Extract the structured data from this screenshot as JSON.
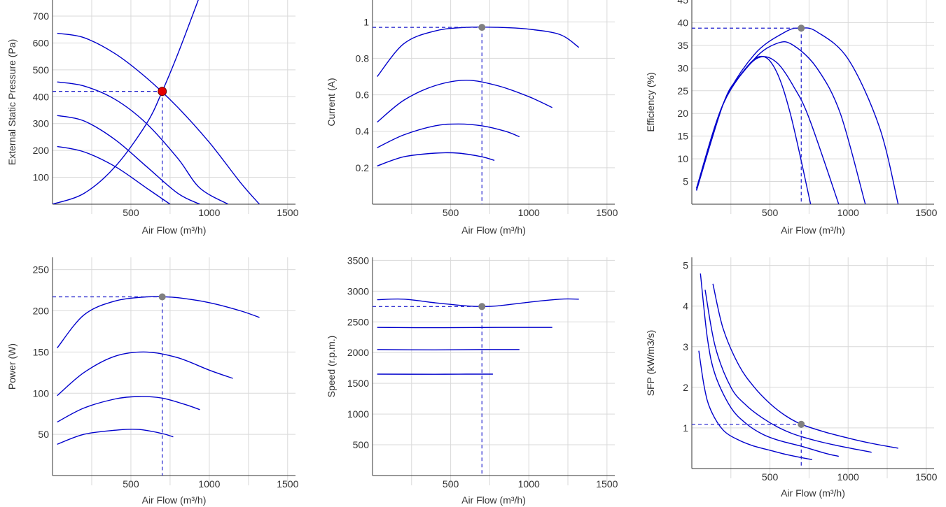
{
  "colors": {
    "curve": "#0000cc",
    "guide": "#1a1acc",
    "marker": "#808080",
    "operating_marker": "#e60000",
    "grid": "#d9d9d9",
    "axis": "#333333"
  },
  "chart_data": [
    {
      "id": "pressure",
      "type": "line",
      "xlabel": "Air Flow (m³/h)",
      "ylabel": "External Static Pressure (Pa)",
      "xlim": [
        0,
        1550
      ],
      "ylim": [
        0,
        760
      ],
      "xticks": [
        500,
        1000,
        1500
      ],
      "yticks": [
        100,
        200,
        300,
        400,
        500,
        600,
        700
      ],
      "xgrid": [
        250,
        500,
        750,
        1000,
        1250,
        1500
      ],
      "ygrid": [
        100,
        200,
        300,
        400,
        500,
        600,
        700
      ],
      "series": [
        {
          "x": [
            30,
            200,
            400,
            600,
            800,
            1000,
            1200,
            1320
          ],
          "y": [
            636,
            620,
            560,
            470,
            360,
            230,
            80,
            0
          ]
        },
        {
          "x": [
            30,
            200,
            400,
            600,
            800,
            940,
            1120
          ],
          "y": [
            455,
            440,
            390,
            300,
            170,
            60,
            0
          ]
        },
        {
          "x": [
            30,
            200,
            400,
            600,
            800,
            940
          ],
          "y": [
            330,
            310,
            240,
            140,
            40,
            0
          ]
        },
        {
          "x": [
            30,
            200,
            400,
            600,
            750
          ],
          "y": [
            215,
            195,
            140,
            60,
            0
          ]
        },
        {
          "x": [
            0,
            200,
            400,
            600,
            700,
            800,
            930
          ],
          "y": [
            0,
            40,
            140,
            300,
            420,
            560,
            760
          ]
        }
      ],
      "marker": {
        "x": 700,
        "y": 420,
        "color": "#e60000"
      }
    },
    {
      "id": "current",
      "type": "line",
      "xlabel": "Air Flow (m³/h)",
      "ylabel": "Current (A)",
      "xlim": [
        0,
        1550
      ],
      "ylim": [
        0,
        1.12
      ],
      "xticks": [
        500,
        1000,
        1500
      ],
      "yticks": [
        0.2,
        0.4,
        0.6,
        0.8,
        1
      ],
      "ytick_labels": [
        "0.2",
        "0.4",
        "0.6",
        "0.8",
        "1"
      ],
      "xgrid": [
        250,
        500,
        750,
        1000,
        1250,
        1500
      ],
      "ygrid": [
        0.2,
        0.4,
        0.6,
        0.8,
        1
      ],
      "series": [
        {
          "x": [
            30,
            200,
            400,
            600,
            800,
            1000,
            1200,
            1320
          ],
          "y": [
            0.7,
            0.88,
            0.95,
            0.97,
            0.97,
            0.96,
            0.93,
            0.86
          ]
        },
        {
          "x": [
            30,
            200,
            400,
            600,
            800,
            1000,
            1150
          ],
          "y": [
            0.45,
            0.57,
            0.65,
            0.68,
            0.65,
            0.59,
            0.53
          ]
        },
        {
          "x": [
            30,
            200,
            400,
            550,
            700,
            850,
            940
          ],
          "y": [
            0.31,
            0.38,
            0.43,
            0.44,
            0.43,
            0.4,
            0.37
          ]
        },
        {
          "x": [
            30,
            200,
            400,
            550,
            700,
            780
          ],
          "y": [
            0.21,
            0.26,
            0.28,
            0.28,
            0.26,
            0.24
          ]
        }
      ],
      "marker": {
        "x": 700,
        "y": 0.97,
        "color": "#808080"
      }
    },
    {
      "id": "efficiency",
      "type": "line",
      "xlabel": "Air Flow (m³/h)",
      "ylabel": "Efficiency (%)",
      "xlim": [
        0,
        1550
      ],
      "ylim": [
        0,
        45
      ],
      "xticks": [
        500,
        1000,
        1500
      ],
      "yticks": [
        5,
        10,
        15,
        20,
        25,
        30,
        35,
        40,
        45
      ],
      "xgrid": [
        250,
        500,
        750,
        1000,
        1250,
        1500
      ],
      "ygrid": [
        5,
        10,
        15,
        20,
        25,
        30,
        35,
        40
      ],
      "series": [
        {
          "x": [
            30,
            200,
            400,
            600,
            700,
            800,
            1000,
            1200,
            1320
          ],
          "y": [
            3.5,
            22,
            33,
            38,
            38.8,
            38,
            32,
            17,
            0
          ]
        },
        {
          "x": [
            30,
            200,
            400,
            550,
            650,
            800,
            950,
            1110
          ],
          "y": [
            3.5,
            22,
            32,
            35.5,
            35,
            30,
            20,
            0
          ]
        },
        {
          "x": [
            30,
            200,
            350,
            450,
            550,
            650,
            750,
            940
          ],
          "y": [
            3.2,
            22,
            30,
            32.5,
            31,
            26,
            19,
            0
          ]
        },
        {
          "x": [
            30,
            200,
            300,
            430,
            530,
            630,
            760
          ],
          "y": [
            3,
            22,
            28,
            32.5,
            30,
            20,
            0
          ]
        }
      ],
      "marker": {
        "x": 700,
        "y": 38.8,
        "color": "#808080"
      }
    },
    {
      "id": "power",
      "type": "line",
      "xlabel": "Air Flow (m³/h)",
      "ylabel": "Power (W)",
      "xlim": [
        0,
        1550
      ],
      "ylim": [
        0,
        265
      ],
      "xticks": [
        500,
        1000,
        1500
      ],
      "yticks": [
        50,
        100,
        150,
        200,
        250
      ],
      "xgrid": [
        250,
        500,
        750,
        1000,
        1250,
        1500
      ],
      "ygrid": [
        50,
        100,
        150,
        200,
        250
      ],
      "series": [
        {
          "x": [
            30,
            200,
            400,
            600,
            700,
            800,
            1000,
            1200,
            1320
          ],
          "y": [
            155,
            195,
            212,
            217,
            217,
            216,
            210,
            200,
            192
          ]
        },
        {
          "x": [
            30,
            200,
            400,
            600,
            800,
            1000,
            1150
          ],
          "y": [
            97,
            125,
            145,
            150,
            143,
            128,
            118
          ]
        },
        {
          "x": [
            30,
            200,
            400,
            550,
            700,
            850,
            940
          ],
          "y": [
            65,
            82,
            93,
            96,
            94,
            86,
            80
          ]
        },
        {
          "x": [
            30,
            200,
            400,
            550,
            700,
            770
          ],
          "y": [
            38,
            50,
            55,
            56,
            51,
            47
          ]
        }
      ],
      "marker": {
        "x": 700,
        "y": 217,
        "color": "#808080"
      }
    },
    {
      "id": "speed",
      "type": "line",
      "xlabel": "Air Flow (m³/h)",
      "ylabel": "Speed (r.p.m.)",
      "xlim": [
        0,
        1550
      ],
      "ylim": [
        0,
        3550
      ],
      "xticks": [
        500,
        1000,
        1500
      ],
      "yticks": [
        500,
        1000,
        1500,
        2000,
        2500,
        3000,
        3500
      ],
      "xgrid": [
        250,
        500,
        750,
        1000,
        1250,
        1500
      ],
      "ygrid": [
        500,
        1000,
        1500,
        2000,
        2500,
        3000,
        3500
      ],
      "series": [
        {
          "x": [
            30,
            200,
            400,
            600,
            700,
            800,
            1000,
            1200,
            1320
          ],
          "y": [
            2860,
            2870,
            2810,
            2760,
            2750,
            2760,
            2820,
            2870,
            2870
          ]
        },
        {
          "x": [
            30,
            400,
            800,
            1150
          ],
          "y": [
            2410,
            2405,
            2410,
            2410
          ]
        },
        {
          "x": [
            30,
            400,
            700,
            940
          ],
          "y": [
            2050,
            2045,
            2050,
            2050
          ]
        },
        {
          "x": [
            30,
            400,
            600,
            770
          ],
          "y": [
            1650,
            1648,
            1650,
            1650
          ]
        }
      ],
      "marker": {
        "x": 700,
        "y": 2750,
        "color": "#808080"
      }
    },
    {
      "id": "sfp",
      "type": "line",
      "xlabel": "Air Flow (m³/h)",
      "ylabel": "SFP (kW/m3/s)",
      "xlim": [
        0,
        1550
      ],
      "ylim": [
        0,
        5.2
      ],
      "xticks": [
        500,
        1000,
        1500
      ],
      "yticks": [
        1,
        2,
        3,
        4,
        5
      ],
      "xgrid": [
        250,
        500,
        750,
        1000,
        1250,
        1500
      ],
      "ygrid": [
        1,
        2,
        3,
        4,
        5
      ],
      "series": [
        {
          "x": [
            135,
            200,
            300,
            400,
            500,
            600,
            700,
            850,
            1000,
            1150,
            1320
          ],
          "y": [
            4.55,
            3.45,
            2.55,
            2.0,
            1.6,
            1.3,
            1.09,
            0.9,
            0.75,
            0.62,
            0.5
          ]
        },
        {
          "x": [
            85,
            150,
            250,
            350,
            450,
            550,
            650,
            800,
            950,
            1150
          ],
          "y": [
            4.4,
            3.0,
            2.0,
            1.55,
            1.25,
            1.02,
            0.85,
            0.68,
            0.55,
            0.4
          ]
        },
        {
          "x": [
            55,
            100,
            150,
            250,
            350,
            450,
            550,
            700,
            850,
            940
          ],
          "y": [
            4.8,
            3.2,
            2.3,
            1.5,
            1.1,
            0.85,
            0.7,
            0.55,
            0.38,
            0.3
          ]
        },
        {
          "x": [
            45,
            80,
            120,
            200,
            300,
            400,
            500,
            600,
            700,
            770
          ],
          "y": [
            2.9,
            2.0,
            1.45,
            0.95,
            0.7,
            0.55,
            0.45,
            0.35,
            0.27,
            0.22
          ]
        }
      ],
      "marker": {
        "x": 700,
        "y": 1.09,
        "color": "#808080"
      }
    }
  ]
}
